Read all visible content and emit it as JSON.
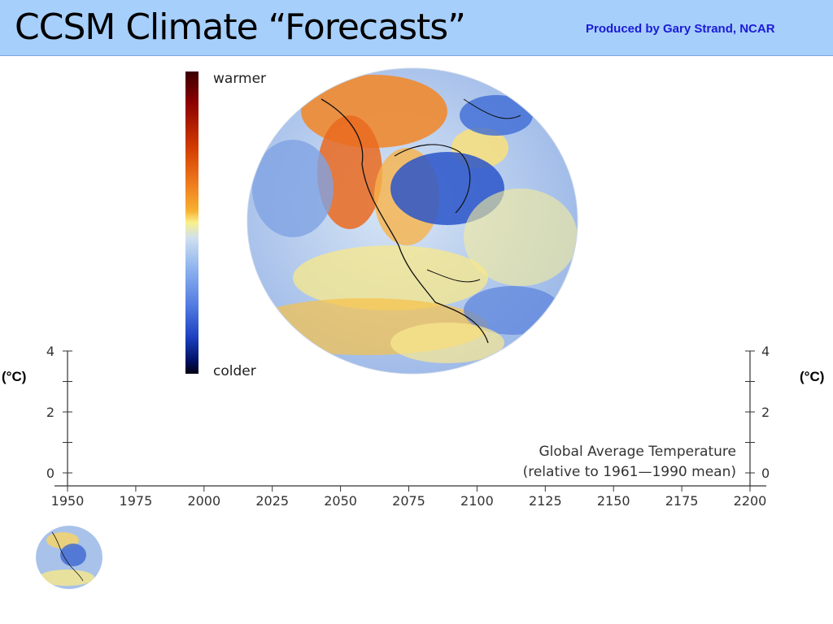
{
  "slide": {
    "title": "CCSM Climate “Forecasts”",
    "credit": "Produced by Gary Strand, NCAR"
  },
  "colorbar": {
    "top_label": "warmer",
    "bottom_label": "colder",
    "colors": [
      "#3a0000",
      "#8b0000",
      "#d23b00",
      "#f08020",
      "#f7b030",
      "#f9f08c",
      "#cfe0ef",
      "#8fb4ef",
      "#4f79e0",
      "#1c3fc0",
      "#001060",
      "#000010"
    ]
  },
  "chart": {
    "unit_left": "(°C)",
    "unit_right": "(°C)",
    "annotation_line1": "Global Average Temperature",
    "annotation_line2": "(relative to 1961—1990 mean)"
  },
  "chart_data": {
    "type": "line",
    "title": "",
    "xlabel": "",
    "ylabel": "(°C)",
    "x_ticks": [
      "1950",
      "1975",
      "2000",
      "2025",
      "2050",
      "2075",
      "2100",
      "2125",
      "2150",
      "2175",
      "2200"
    ],
    "y_ticks": [
      "0",
      "2",
      "4"
    ],
    "xlim": [
      1950,
      2200
    ],
    "ylim": [
      0,
      4
    ],
    "series": [],
    "grid": false
  }
}
